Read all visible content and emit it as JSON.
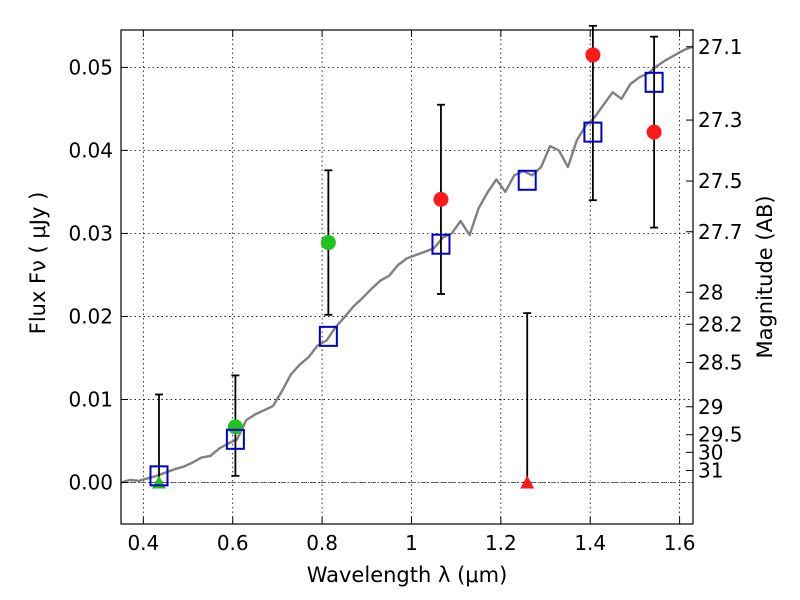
{
  "chart_data": {
    "type": "scatter",
    "xlabel": "Wavelength  λ (μm)",
    "ylabel": "Flux  Fν  ( μJy )",
    "y2label": "Magnitude (AB)",
    "xlim": [
      0.35,
      1.63
    ],
    "ylim": [
      -0.005,
      0.0545
    ],
    "x_ticks": [
      0.4,
      0.6,
      0.8,
      1.0,
      1.2,
      1.4,
      1.6
    ],
    "x_tick_labels": [
      "0.4",
      "0.6",
      "0.8",
      "1",
      "1.2",
      "1.4",
      "1.6"
    ],
    "y_ticks": [
      0.0,
      0.01,
      0.02,
      0.03,
      0.04,
      0.05
    ],
    "y_tick_labels": [
      "0.00",
      "0.01",
      "0.02",
      "0.03",
      "0.04",
      "0.05"
    ],
    "mag_ticks": [
      "27.1",
      "27.3",
      "27.5",
      "27.7",
      "28",
      "28.2",
      "28.5",
      "29",
      "29.5",
      "30",
      "31"
    ],
    "grid": true,
    "colors": {
      "model": "#808080",
      "green": "#1ec31e",
      "red": "#ff1a1a",
      "box": "#0000cc",
      "error": "#000000"
    },
    "model_spectrum": {
      "x": [
        0.35,
        0.37,
        0.39,
        0.41,
        0.43,
        0.45,
        0.47,
        0.49,
        0.51,
        0.53,
        0.55,
        0.57,
        0.59,
        0.61,
        0.63,
        0.65,
        0.67,
        0.69,
        0.71,
        0.73,
        0.75,
        0.77,
        0.79,
        0.81,
        0.83,
        0.85,
        0.87,
        0.89,
        0.91,
        0.93,
        0.95,
        0.97,
        0.99,
        1.01,
        1.03,
        1.05,
        1.07,
        1.09,
        1.11,
        1.13,
        1.15,
        1.17,
        1.19,
        1.21,
        1.23,
        1.25,
        1.27,
        1.29,
        1.31,
        1.33,
        1.35,
        1.37,
        1.39,
        1.41,
        1.43,
        1.45,
        1.47,
        1.49,
        1.51,
        1.53,
        1.55,
        1.57,
        1.59,
        1.61,
        1.63
      ],
      "y": [
        0.0,
        0.0003,
        0.0002,
        0.0005,
        0.0008,
        0.0012,
        0.0016,
        0.0019,
        0.0024,
        0.003,
        0.0032,
        0.0041,
        0.0047,
        0.0052,
        0.0075,
        0.0082,
        0.0087,
        0.0092,
        0.011,
        0.013,
        0.0142,
        0.0151,
        0.0165,
        0.0171,
        0.0187,
        0.0199,
        0.0212,
        0.0222,
        0.0233,
        0.0243,
        0.0249,
        0.0262,
        0.027,
        0.0274,
        0.0278,
        0.0282,
        0.0295,
        0.03,
        0.0315,
        0.0298,
        0.033,
        0.0349,
        0.0365,
        0.035,
        0.037,
        0.0375,
        0.037,
        0.038,
        0.0405,
        0.04,
        0.038,
        0.0412,
        0.043,
        0.044,
        0.0455,
        0.047,
        0.0462,
        0.048,
        0.0488,
        0.0493,
        0.0502,
        0.0509,
        0.0515,
        0.0521,
        0.0525
      ]
    },
    "series": [
      {
        "marker": "circle-green",
        "points": [
          {
            "x": 0.606,
            "y": 0.0067,
            "err_lo": 0.0008,
            "err_hi": 0.0129
          },
          {
            "x": 0.814,
            "y": 0.0289,
            "err_lo": 0.0202,
            "err_hi": 0.0376
          }
        ]
      },
      {
        "marker": "triangle-green",
        "points": [
          {
            "x": 0.435,
            "y": 0.0,
            "err_lo": 0.0,
            "err_hi": 0.0106
          }
        ]
      },
      {
        "marker": "circle-red",
        "points": [
          {
            "x": 1.066,
            "y": 0.0341,
            "err_lo": 0.0227,
            "err_hi": 0.0455
          },
          {
            "x": 1.406,
            "y": 0.0515,
            "err_lo": 0.034,
            "err_hi": 0.055
          },
          {
            "x": 1.543,
            "y": 0.0422,
            "err_lo": 0.0307,
            "err_hi": 0.0537
          }
        ]
      },
      {
        "marker": "triangle-red",
        "points": [
          {
            "x": 1.259,
            "y": 0.0,
            "err_lo": 0.0,
            "err_hi": 0.0204
          }
        ]
      },
      {
        "marker": "open-square-blue",
        "points": [
          {
            "x": 0.435,
            "y": 0.0008
          },
          {
            "x": 0.606,
            "y": 0.0052
          },
          {
            "x": 0.814,
            "y": 0.0176
          },
          {
            "x": 1.066,
            "y": 0.0287
          },
          {
            "x": 1.259,
            "y": 0.0364
          },
          {
            "x": 1.406,
            "y": 0.0422
          },
          {
            "x": 1.543,
            "y": 0.0482
          }
        ]
      }
    ]
  }
}
